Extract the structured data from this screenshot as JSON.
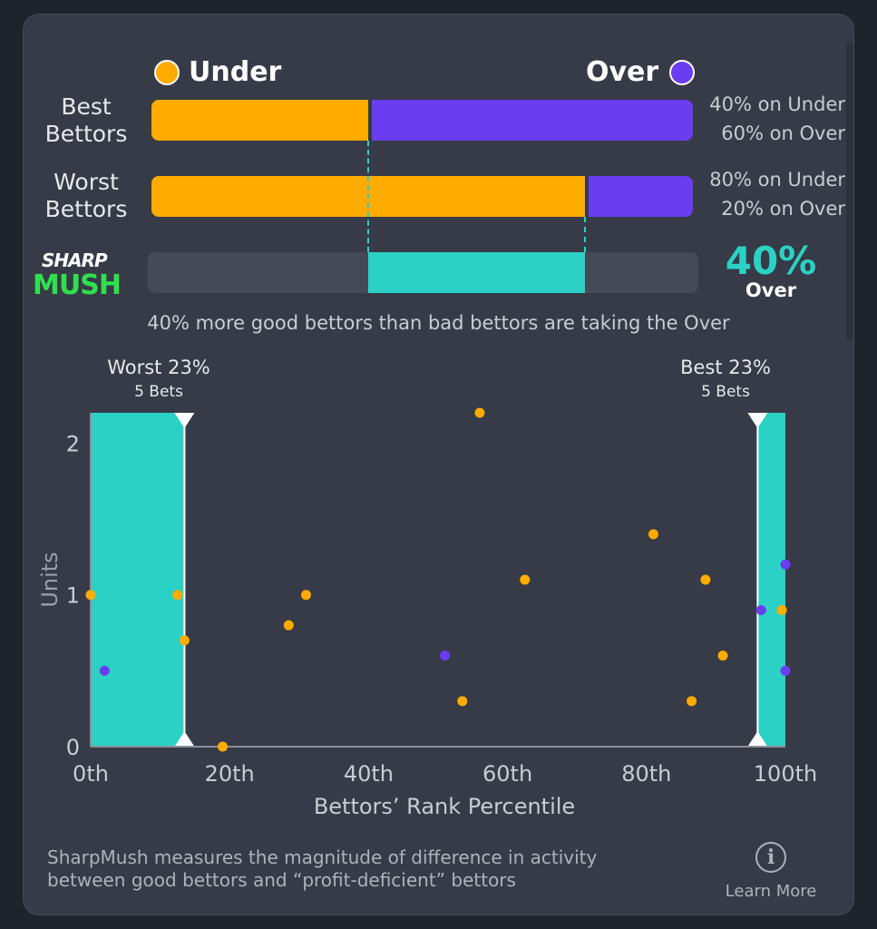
{
  "legend": {
    "under_label": "Under",
    "over_label": "Over"
  },
  "colors": {
    "under": "#ffab00",
    "over": "#6a3df0",
    "sharp": "#2bd1c4"
  },
  "best": {
    "label_line1": "Best",
    "label_line2": "Bettors",
    "under_pct": 40,
    "over_pct": 60,
    "under_text": "40% on Under",
    "over_text": "60% on Over"
  },
  "worst": {
    "label_line1": "Worst",
    "label_line2": "Bettors",
    "under_pct": 80,
    "over_pct": 20,
    "under_text": "80% on Under",
    "over_text": "20% on Over"
  },
  "logo": {
    "line1": "SHARP",
    "line2": "MUSH"
  },
  "sharpmush": {
    "value": "40%",
    "direction": "Over",
    "start_pct": 40,
    "end_pct": 80
  },
  "summary": "40% more good bettors than bad bettors are taking the Over",
  "zones": {
    "worst_label": "Worst 23%",
    "worst_bets": "5 Bets",
    "best_label": "Best 23%",
    "best_bets": "5 Bets"
  },
  "chart_data": {
    "type": "scatter",
    "xlabel": "Bettors’ Rank Percentile",
    "ylabel": "Units",
    "xlim": [
      0,
      100
    ],
    "ylim": [
      0,
      2.2
    ],
    "x_ticks": [
      "0th",
      "20th",
      "40th",
      "60th",
      "80th",
      "100th"
    ],
    "x_tick_values": [
      0,
      20,
      40,
      60,
      80,
      100
    ],
    "y_ticks": [
      "0",
      "1",
      "2"
    ],
    "y_tick_values": [
      0,
      1,
      2
    ],
    "highlight_ranges": [
      [
        0,
        13.5
      ],
      [
        96,
        100
      ]
    ],
    "series": [
      {
        "name": "Under",
        "color": "#ffab00",
        "points": [
          [
            0,
            1
          ],
          [
            12.5,
            1
          ],
          [
            13.5,
            0.7
          ],
          [
            19,
            0
          ],
          [
            28.5,
            0.8
          ],
          [
            31,
            1
          ],
          [
            53.5,
            0.3
          ],
          [
            56,
            2.2
          ],
          [
            62.5,
            1.1
          ],
          [
            81,
            1.4
          ],
          [
            86.5,
            0.3
          ],
          [
            88.5,
            1.1
          ],
          [
            91,
            0.6
          ],
          [
            99.5,
            0.9
          ]
        ]
      },
      {
        "name": "Over",
        "color": "#6a3df0",
        "points": [
          [
            2,
            0.5
          ],
          [
            51,
            0.6
          ],
          [
            96.5,
            0.9
          ],
          [
            100,
            1.2
          ],
          [
            100,
            0.5
          ]
        ]
      }
    ]
  },
  "footer": {
    "line1": "SharpMush measures the magnitude of difference in activity",
    "line2": "between good bettors and “profit-deficient” bettors"
  },
  "learn_more": {
    "icon": "i",
    "label": "Learn More"
  }
}
